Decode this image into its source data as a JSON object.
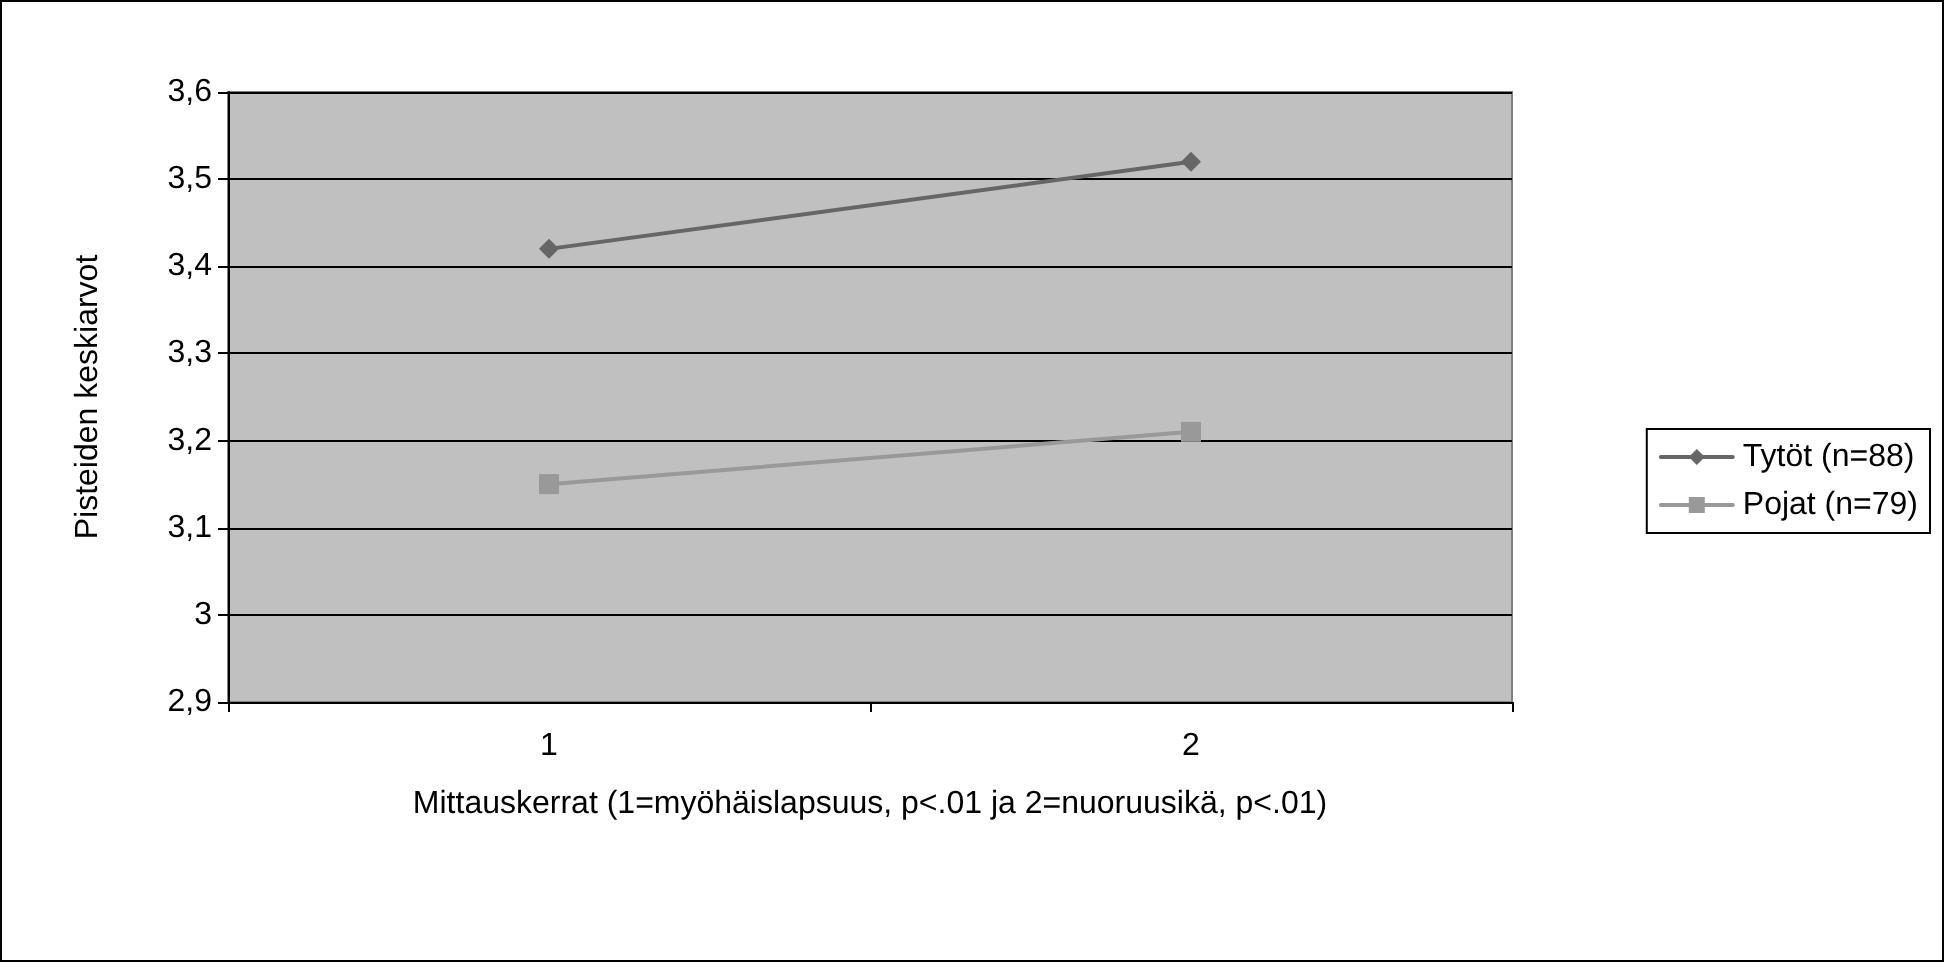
{
  "chart_data": {
    "type": "line",
    "xlabel": "Mittauskerrat (1=myöhäislapsuus, p<.01 ja 2=nuoruusikä, p<.01)",
    "ylabel": "Pisteiden keskiarvot",
    "categories": [
      "1",
      "2"
    ],
    "series": [
      {
        "name": "Tytöt (n=88)",
        "color": "#666666",
        "marker": "diamond",
        "values": [
          3.42,
          3.52
        ]
      },
      {
        "name": "Pojat (n=79)",
        "color": "#999999",
        "marker": "square",
        "values": [
          3.15,
          3.21
        ]
      }
    ],
    "ylim": [
      2.9,
      3.6
    ],
    "yticks": [
      {
        "value": 2.9,
        "label": "2,9"
      },
      3,
      {
        "value": 3.1,
        "label": "3,1"
      },
      {
        "value": 3.2,
        "label": "3,2"
      },
      {
        "value": 3.3,
        "label": "3,3"
      },
      {
        "value": 3.4,
        "label": "3,4"
      },
      {
        "value": 3.5,
        "label": "3,5"
      },
      {
        "value": 3.6,
        "label": "3,6"
      }
    ],
    "grid": "y",
    "legend": "right",
    "line_style": "solid"
  }
}
